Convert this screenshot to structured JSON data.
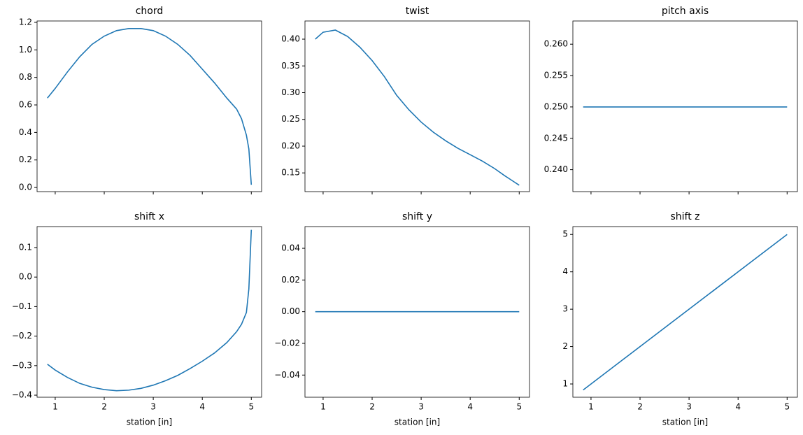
{
  "chart_data": [
    {
      "type": "line",
      "title": "chord",
      "color": "#1f77b4",
      "x": [
        0.84,
        1.0,
        1.25,
        1.5,
        1.75,
        2.0,
        2.25,
        2.5,
        2.75,
        3.0,
        3.25,
        3.5,
        3.75,
        4.0,
        4.25,
        4.5,
        4.7,
        4.8,
        4.9,
        4.95,
        5.0
      ],
      "values": [
        0.65,
        0.72,
        0.84,
        0.95,
        1.04,
        1.1,
        1.14,
        1.155,
        1.155,
        1.14,
        1.1,
        1.04,
        0.96,
        0.86,
        0.76,
        0.65,
        0.57,
        0.5,
        0.38,
        0.28,
        0.02
      ],
      "xlim": [
        0.63,
        5.21
      ],
      "ylim": [
        -0.03,
        1.21
      ],
      "xticks": [
        1,
        2,
        3,
        4,
        5
      ],
      "yticks": [
        {
          "value": 0,
          "label": "0.0"
        },
        0.2,
        0.4,
        0.6,
        0.8,
        {
          "value": 1,
          "label": "1.0"
        },
        1.2
      ]
    },
    {
      "type": "line",
      "title": "twist",
      "color": "#1f77b4",
      "x": [
        0.84,
        1.0,
        1.25,
        1.5,
        1.75,
        2.0,
        2.25,
        2.5,
        2.75,
        3.0,
        3.25,
        3.5,
        3.75,
        4.0,
        4.25,
        4.5,
        4.7,
        4.8,
        4.9,
        4.95,
        5.0
      ],
      "values": [
        0.4,
        0.413,
        0.417,
        0.405,
        0.385,
        0.36,
        0.33,
        0.295,
        0.268,
        0.245,
        0.226,
        0.21,
        0.196,
        0.184,
        0.172,
        0.158,
        0.145,
        0.139,
        0.133,
        0.13,
        0.127
      ],
      "xlim": [
        0.63,
        5.21
      ],
      "ylim": [
        0.115,
        0.434
      ],
      "xticks": [
        1,
        2,
        3,
        4,
        5
      ],
      "yticks": [
        0.15,
        {
          "value": 0.2,
          "label": "0.20"
        },
        0.25,
        {
          "value": 0.3,
          "label": "0.30"
        },
        0.35,
        {
          "value": 0.4,
          "label": "0.40"
        }
      ]
    },
    {
      "type": "line",
      "title": "pitch axis",
      "color": "#1f77b4",
      "x": [
        0.84,
        5.0
      ],
      "values": [
        0.25,
        0.25
      ],
      "xlim": [
        0.63,
        5.21
      ],
      "ylim": [
        0.2365,
        0.2637
      ],
      "xticks": [
        1,
        2,
        3,
        4,
        5
      ],
      "yticks": [
        {
          "value": 0.24,
          "label": "0.240"
        },
        0.245,
        {
          "value": 0.25,
          "label": "0.250"
        },
        0.255,
        {
          "value": 0.26,
          "label": "0.260"
        }
      ]
    },
    {
      "type": "line",
      "title": "shift x",
      "xlabel": "station [in]",
      "color": "#1f77b4",
      "x": [
        0.84,
        1.0,
        1.25,
        1.5,
        1.75,
        2.0,
        2.25,
        2.5,
        2.75,
        3.0,
        3.25,
        3.5,
        3.75,
        4.0,
        4.25,
        4.5,
        4.7,
        4.8,
        4.9,
        4.95,
        5.0
      ],
      "values": [
        -0.295,
        -0.315,
        -0.34,
        -0.36,
        -0.373,
        -0.381,
        -0.385,
        -0.383,
        -0.377,
        -0.366,
        -0.351,
        -0.333,
        -0.31,
        -0.285,
        -0.257,
        -0.222,
        -0.185,
        -0.16,
        -0.12,
        -0.04,
        0.16
      ],
      "xlim": [
        0.63,
        5.21
      ],
      "ylim": [
        -0.407,
        0.171
      ],
      "xticks": [
        1,
        2,
        3,
        4,
        5
      ],
      "yticks": [
        {
          "value": -0.4,
          "label": "−0.4"
        },
        {
          "value": -0.3,
          "label": "−0.3"
        },
        {
          "value": -0.2,
          "label": "−0.2"
        },
        {
          "value": -0.1,
          "label": "−0.1"
        },
        {
          "value": 0,
          "label": "0.0"
        },
        0.1
      ]
    },
    {
      "type": "line",
      "title": "shift y",
      "xlabel": "station [in]",
      "color": "#1f77b4",
      "x": [
        0.84,
        5.0
      ],
      "values": [
        0,
        0
      ],
      "xlim": [
        0.63,
        5.21
      ],
      "ylim": [
        -0.054,
        0.0537
      ],
      "xticks": [
        1,
        2,
        3,
        4,
        5
      ],
      "yticks": [
        {
          "value": -0.04,
          "label": "−0.04"
        },
        {
          "value": -0.02,
          "label": "−0.02"
        },
        {
          "value": 0,
          "label": "0.00"
        },
        0.02,
        0.04
      ]
    },
    {
      "type": "line",
      "title": "shift z",
      "xlabel": "station [in]",
      "color": "#1f77b4",
      "x": [
        0.84,
        5.0
      ],
      "values": [
        0.84,
        5.0
      ],
      "xlim": [
        0.63,
        5.21
      ],
      "ylim": [
        0.645,
        5.21
      ],
      "xticks": [
        1,
        2,
        3,
        4,
        5
      ],
      "yticks": [
        1,
        2,
        3,
        4,
        5
      ]
    }
  ]
}
